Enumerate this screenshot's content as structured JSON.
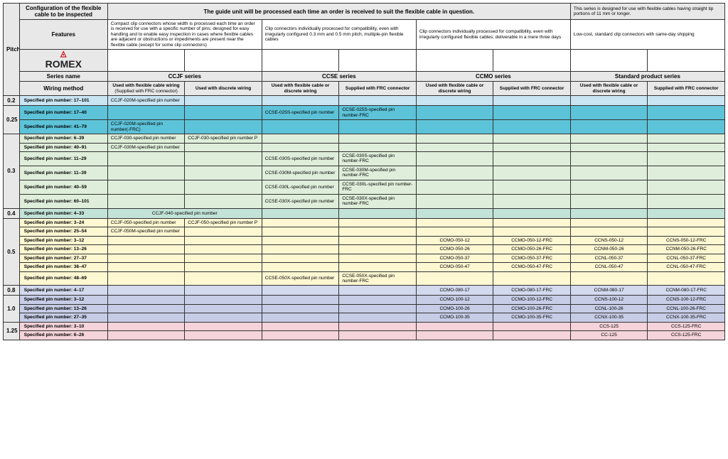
{
  "header": {
    "pitch": "Pitch",
    "config": "Configuration of the flexible cable to be inspected",
    "guide_note": "The guide unit will be processed each time an order is received to suit the flexible cable in question.",
    "std_note": "This series is designed for use with flexible cables having straight tip portions of 11 mm or longer.",
    "features": "Features",
    "feat_ccjf": "Compact clip connectors whose width is processed each time an order is received for use with a specific number of pins; designed for easy handling and to enable easy inspection in cases where flexible cables are adjacent or obstructions or impediments are present near the flexible cable (except for some clip connectors)",
    "feat_ccse": "Clip connectors individually processed for compatibility, even with irregularly configured 0.3 mm and 0.5 mm pitch, multiple-pin flexible cables",
    "feat_ccmo": "Clip connectors individually processed for compatibility, even with irregularly configured flexible cables; deliverable in a mere three days",
    "feat_std": "Low-cost, standard clip connectors with same-day shipping",
    "series_name_lbl": "Series name",
    "series_ccjf": "CCJF series",
    "series_ccse": "CCSE series",
    "series_ccmo": "CCMO series",
    "series_std": "Standard product series",
    "wiring_lbl": "Wiring method",
    "wiring_flex_sub": "Used with flexible cable wiring",
    "wiring_flex_note": "(Supplied with FRC connector)",
    "wiring_discrete": "Used with discrete wiring",
    "wiring_flex_or": "Used with flexible cable or discrete wiring",
    "wiring_frc": "Supplied with FRC connector",
    "logo": "ROMEX"
  },
  "rows": [
    {
      "pitch": "0.2",
      "rowspan": 1,
      "cls": "c02",
      "spec": "Specified pin number: 17–101",
      "d1": "CCJF-020M-specified pin number",
      "d2": "",
      "d3": "",
      "d4": "",
      "d5": "",
      "d6": "",
      "d7": "",
      "d8": ""
    },
    {
      "pitch": "0.25",
      "rowspan": 2,
      "cls": "c025",
      "spec": "Specified pin number: 17–40",
      "d1": "",
      "d2": "",
      "d3": "CCSE-025S-specified pin number",
      "d4": "CCSE-025S-specified pin number-FRC",
      "d5": "",
      "d6": "",
      "d7": "",
      "d8": ""
    },
    {
      "cls": "c025",
      "spec": "Specified pin number: 41–79",
      "d1": "CCJF-020M-specified pin number(-FRC)",
      "d2": "",
      "d3": "",
      "d4": "",
      "d5": "",
      "d6": "",
      "d7": "",
      "d8": ""
    },
    {
      "pitch": "0.3",
      "rowspan": 6,
      "cls": "c03",
      "spec": "Specified pin number: 6–39",
      "d1": "CCJF-030-specified pin number",
      "d2": "CCJF-030-specified pin number P",
      "d3": "",
      "d4": "",
      "d5": "",
      "d6": "",
      "d7": "",
      "d8": ""
    },
    {
      "cls": "c03",
      "spec": "Specified pin number: 40–91",
      "d1": "CCJF-030M-specified pin number",
      "d2": "",
      "d3": "",
      "d4": "",
      "d5": "",
      "d6": "",
      "d7": "",
      "d8": ""
    },
    {
      "cls": "c03",
      "spec": "Specified pin number: 11–29",
      "d1": "",
      "d2": "",
      "d3": "CCSE-030S-specified pin number",
      "d4": "CCSE-030S-specified pin number-FRC",
      "d5": "",
      "d6": "",
      "d7": "",
      "d8": ""
    },
    {
      "cls": "c03",
      "spec": "Specified pin number: 11–39",
      "d1": "",
      "d2": "",
      "d3": "CCSE-030M-specified pin number",
      "d4": "CCSE-030M-specified pin number-FRC",
      "d5": "",
      "d6": "",
      "d7": "",
      "d8": ""
    },
    {
      "cls": "c03",
      "spec": "Specified pin number: 40–59",
      "d1": "",
      "d2": "",
      "d3": "CCSE-030L-specified pin number",
      "d4": "CCSE-030L-specified pin number-FRC",
      "d5": "",
      "d6": "",
      "d7": "",
      "d8": ""
    },
    {
      "cls": "c03",
      "spec": "Specified pin number: 60–101",
      "d1": "",
      "d2": "",
      "d3": "CCSE-030X-specified pin number",
      "d4": "CCSE-030X-specified pin number-FRC",
      "d5": "",
      "d6": "",
      "d7": "",
      "d8": ""
    },
    {
      "pitch": "0.4",
      "rowspan": 1,
      "cls": "c04",
      "spec": "Specified pin number: 4–33",
      "d1_span2": "CCJF-040-specified pin number",
      "d3": "",
      "d4": "",
      "d5": "",
      "d6": "",
      "d7": "",
      "d8": ""
    },
    {
      "pitch": "0.5",
      "rowspan": 7,
      "cls": "c05",
      "spec": "Specified pin number: 3–24",
      "d1": "CCJF-050-specified pin number",
      "d2": "CCJF-050-specified pin number P",
      "d3": "",
      "d4": "",
      "d5": "",
      "d6": "",
      "d7": "",
      "d8": ""
    },
    {
      "cls": "c05",
      "spec": "Specified pin number: 25–54",
      "d1": "CCJF-050M-specified pin number",
      "d2": "",
      "d3": "",
      "d4": "",
      "d5": "",
      "d6": "",
      "d7": "",
      "d8": ""
    },
    {
      "cls": "c05",
      "spec": "Specified pin number: 3–12",
      "d1": "",
      "d2": "",
      "d3": "",
      "d4": "",
      "d5": "CCMO-050-12",
      "d6": "CCMO-050-12-FRC",
      "d7": "CCNS-050-12",
      "d8": "CCNS-050-12-FRC"
    },
    {
      "cls": "c05",
      "spec": "Specified pin number: 13–26",
      "d1": "",
      "d2": "",
      "d3": "",
      "d4": "",
      "d5": "CCMO-050-26",
      "d6": "CCMO-050-26-FRC",
      "d7": "CCNM-050-26",
      "d8": "CCNM-050-26-FRC"
    },
    {
      "cls": "c05",
      "spec": "Specified pin number: 27–37",
      "d1": "",
      "d2": "",
      "d3": "",
      "d4": "",
      "d5": "CCMO-050-37",
      "d6": "CCMO-050-37-FRC",
      "d7": "CCNL-050-37",
      "d8": "CCNL-050-37-FRC"
    },
    {
      "cls": "c05",
      "spec": "Specified pin number: 38–47",
      "d1": "",
      "d2": "",
      "d3": "",
      "d4": "",
      "d5": "CCMO-050-47",
      "d6": "CCMO-050-47-FRC",
      "d7": "CCNL-050-47",
      "d8": "CCNL-050-47-FRC"
    },
    {
      "cls": "c05",
      "spec": "Specified pin number: 48–69",
      "d1": "",
      "d2": "",
      "d3": "CCSE-050X-specified pin number",
      "d4": "CCSE-050X-specified pin number-FRC",
      "d5": "",
      "d6": "",
      "d7": "",
      "d8": ""
    },
    {
      "pitch": "0.8",
      "rowspan": 1,
      "cls": "c08",
      "spec": "Specified pin number: 4–17",
      "d1": "",
      "d2": "",
      "d3": "",
      "d4": "",
      "d5": "CCMO-080-17",
      "d6": "CCMO-080-17-FRC",
      "d7": "CCNM-080-17",
      "d8": "CCNM-080-17-FRC"
    },
    {
      "pitch": "1.0",
      "rowspan": 3,
      "cls": "c10",
      "spec": "Specified pin number: 3–12",
      "d1": "",
      "d2": "",
      "d3": "",
      "d4": "",
      "d5": "CCMO-100-12",
      "d6": "CCMO-100-12-FRC",
      "d7": "CCNS-100-12",
      "d8": "CCNS-100-12-FRC"
    },
    {
      "cls": "c10",
      "spec": "Specified pin number: 13–26",
      "d1": "",
      "d2": "",
      "d3": "",
      "d4": "",
      "d5": "CCMO-100-26",
      "d6": "CCMO-100-26-FRC",
      "d7": "CCNL-100-26",
      "d8": "CCNL-100-26-FRC"
    },
    {
      "cls": "c10",
      "spec": "Specified pin number: 27–35",
      "d1": "",
      "d2": "",
      "d3": "",
      "d4": "",
      "d5": "CCMO-100-35",
      "d6": "CCMO-100-35-FRC",
      "d7": "CCNX-100-35",
      "d8": "CCNX-100-35-FRC"
    },
    {
      "pitch": "1.25",
      "rowspan": 2,
      "cls": "c125",
      "spec": "Specified pin number: 3–10",
      "d1": "",
      "d2": "",
      "d3": "",
      "d4": "",
      "d5": "",
      "d6": "",
      "d7": "CCS-125",
      "d8": "CCS-125-FRC"
    },
    {
      "cls": "c125",
      "spec": "Specified pin number: 6–26",
      "d1": "",
      "d2": "",
      "d3": "",
      "d4": "",
      "d5": "",
      "d6": "",
      "d7": "CC-125",
      "d8": "CCS-125-FRC"
    }
  ]
}
